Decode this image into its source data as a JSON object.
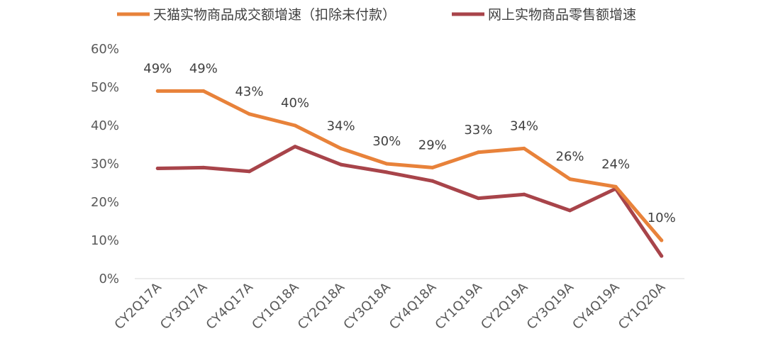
{
  "chart_data": {
    "type": "line",
    "title": "",
    "xlabel": "",
    "ylabel": "",
    "ylim": [
      0,
      60
    ],
    "y_ticks": [
      0,
      10,
      20,
      30,
      40,
      50,
      60
    ],
    "y_tick_suffix": "%",
    "grid": false,
    "legend_position": "top",
    "categories": [
      "CY2Q17A",
      "CY3Q17A",
      "CY4Q17A",
      "CY1Q18A",
      "CY2Q18A",
      "CY3Q18A",
      "CY4Q18A",
      "CY1Q19A",
      "CY2Q19A",
      "CY3Q19A",
      "CY4Q19A",
      "CY1Q20A"
    ],
    "series": [
      {
        "name": "天猫实物商品成交额增速（扣除未付款）",
        "color": "#E8823A",
        "values": [
          49,
          49,
          43,
          40,
          34,
          30,
          29,
          33,
          34,
          26,
          24,
          10
        ],
        "data_labels": [
          "49%",
          "49%",
          "43%",
          "40%",
          "34%",
          "30%",
          "29%",
          "33%",
          "34%",
          "26%",
          "24%",
          "10%"
        ]
      },
      {
        "name": "网上实物商品零售额增速",
        "color": "#A8444A",
        "values": [
          28.8,
          29.0,
          28.0,
          34.5,
          29.8,
          27.8,
          25.5,
          21.0,
          22.0,
          17.8,
          23.5,
          5.9
        ]
      }
    ]
  }
}
